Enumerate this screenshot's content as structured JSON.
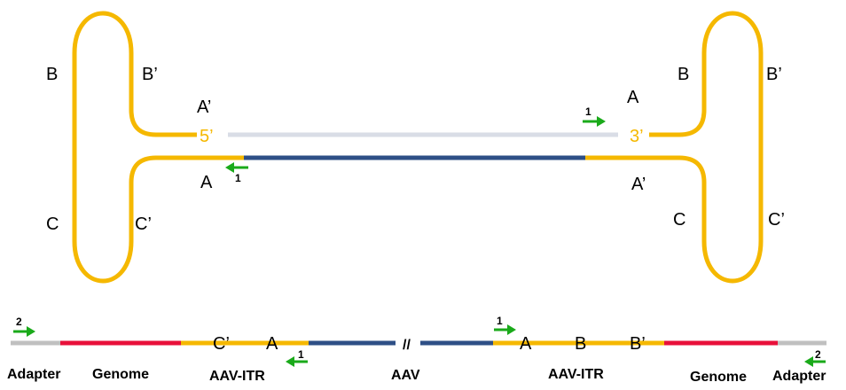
{
  "colors": {
    "itr": "#f5b800",
    "aav": "#2e4f86",
    "genome": "#e8103a",
    "adapter": "#c0c0c0",
    "strand_light": "#d9dde6",
    "primer": "#1aaa1a"
  },
  "top": {
    "left_hairpin": {
      "upper": "B",
      "upper_prime": "B’",
      "lower": "C",
      "lower_prime": "C’",
      "stem_top": "A’",
      "stem_bottom": "A"
    },
    "right_hairpin": {
      "upper": "B",
      "upper_prime": "B’",
      "lower": "C",
      "lower_prime": "C’",
      "stem_top": "A",
      "stem_bottom": "A’"
    },
    "end_5": "5’",
    "end_3": "3’",
    "primer_right_label": "1",
    "primer_left_label": "1"
  },
  "bottom": {
    "seg_c_prime": "C’",
    "seg_a_left": "A",
    "break_mark": "//",
    "seg_a_right": "A",
    "seg_b": "B",
    "seg_b_prime": "B’",
    "primer_adapter_left": "2",
    "primer_itr_left": "1",
    "primer_itr_right": "1",
    "primer_adapter_right": "2",
    "captions": {
      "adapter_left": "Adapter",
      "genome_left": "Genome",
      "itr_left": "AAV-ITR",
      "aav": "AAV",
      "itr_right": "AAV-ITR",
      "genome_right": "Genome",
      "adapter_right": "Adapter"
    }
  }
}
